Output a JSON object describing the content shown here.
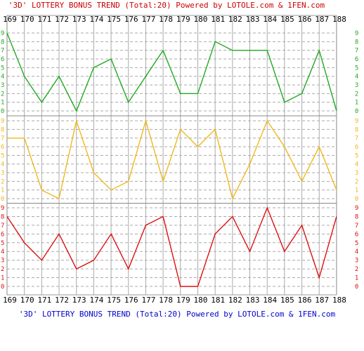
{
  "chart_data": {
    "type": "line",
    "title_top": "'3D' LOTTERY BONUS TREND (Total:20)  Powered by LOTOLE.com & 1FEN.com",
    "title_bottom": "'3D' LOTTERY BONUS TREND (Total:20)  Powered by LOTOLE.com & 1FEN.com",
    "categories": [
      "169",
      "170",
      "171",
      "172",
      "173",
      "174",
      "175",
      "176",
      "177",
      "178",
      "179",
      "180",
      "181",
      "182",
      "183",
      "184",
      "185",
      "186",
      "187",
      "188"
    ],
    "y_ticks": [
      "0",
      "1",
      "2",
      "3",
      "4",
      "5",
      "6",
      "7",
      "8",
      "9"
    ],
    "ylim": [
      0,
      9
    ],
    "grid": true,
    "series": [
      {
        "color": "#22aa22",
        "values": [
          9,
          4,
          1,
          4,
          0,
          5,
          6,
          1,
          4,
          7,
          2,
          2,
          8,
          7,
          7,
          7,
          1,
          2,
          7,
          0
        ]
      },
      {
        "color": "#f0b81e",
        "values": [
          7,
          7,
          1,
          0,
          9,
          3,
          1,
          2,
          9,
          2,
          8,
          6,
          8,
          0,
          4,
          9,
          6,
          2,
          6,
          1
        ]
      },
      {
        "color": "#dd1111",
        "values": [
          8,
          5,
          3,
          6,
          2,
          3,
          6,
          2,
          7,
          8,
          0,
          0,
          6,
          8,
          4,
          9,
          4,
          7,
          1,
          8
        ]
      }
    ],
    "colors": {
      "title": "#cc0000",
      "title_bottom": "#0000cc",
      "axis_text": "#000000",
      "grid_major": "#999999",
      "grid_minor": "#bbbbbb"
    }
  }
}
